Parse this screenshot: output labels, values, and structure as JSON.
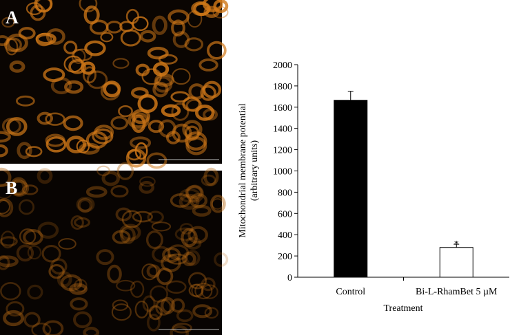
{
  "panels": [
    {
      "label": "A"
    },
    {
      "label": "B"
    }
  ],
  "chart_data": {
    "type": "bar",
    "categories": [
      "Control",
      "Bi-L-RhamBet 5 µM"
    ],
    "values": [
      1665,
      280
    ],
    "errors": [
      85,
      30
    ],
    "colors": [
      "#000000",
      "#ffffff"
    ],
    "annotations": [
      null,
      "*"
    ],
    "xlabel": "Treatment",
    "ylabel": [
      "Mitochondrial membrane potential",
      "(arbitrary units)"
    ],
    "ylim": [
      0,
      2000
    ],
    "yticks": [
      0,
      200,
      400,
      600,
      800,
      1000,
      1200,
      1400,
      1600,
      1800,
      2000
    ],
    "grid": false
  }
}
